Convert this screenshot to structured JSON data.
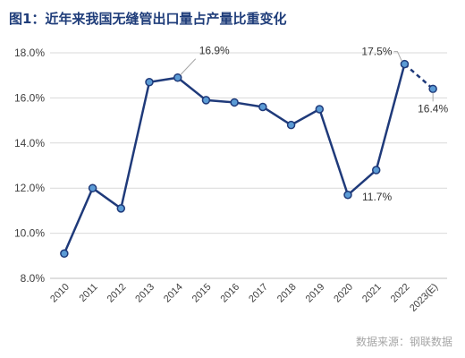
{
  "title": "图1：近年来我国无缝管出口量占产量比重变化",
  "source": "数据来源：钢联数据",
  "colors": {
    "line": "#1f3a7a",
    "marker_fill": "#5b9bd5",
    "marker_stroke": "#1f3a7a",
    "grid": "#d9d9d9",
    "axis": "#bfbfbf",
    "leader": "#a6a6a6"
  },
  "chart_data": {
    "type": "line",
    "title": "图1：近年来我国无缝管出口量占产量比重变化",
    "x_unit": "year",
    "categories": [
      "2010",
      "2011",
      "2012",
      "2013",
      "2014",
      "2015",
      "2016",
      "2017",
      "2018",
      "2019",
      "2020",
      "2021",
      "2022",
      "2023(E)"
    ],
    "values": [
      9.1,
      12.0,
      11.1,
      16.7,
      16.9,
      15.9,
      15.8,
      15.6,
      14.8,
      15.5,
      11.7,
      12.8,
      17.5,
      16.4
    ],
    "y_unit": "%",
    "ylim": [
      8.0,
      18.0
    ],
    "yticks": [
      "8.0%",
      "10.0%",
      "12.0%",
      "14.0%",
      "16.0%",
      "18.0%"
    ],
    "grid": "horizontal",
    "legend": "none",
    "dashed_segment_from_index": 12,
    "data_labels": [
      {
        "index": 4,
        "text": "16.9%"
      },
      {
        "index": 10,
        "text": "11.7%"
      },
      {
        "index": 12,
        "text": "17.5%"
      },
      {
        "index": 13,
        "text": "16.4%"
      }
    ]
  }
}
